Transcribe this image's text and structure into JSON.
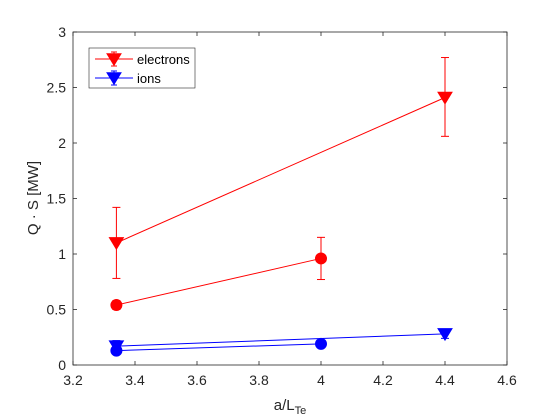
{
  "chart_data": {
    "type": "line",
    "xlabel_main": "a/L",
    "xlabel_sub": "Te",
    "ylabel": "Q · S [MW]",
    "xlim": [
      3.2,
      4.6
    ],
    "ylim": [
      0,
      3
    ],
    "xticks": [
      "3.2",
      "3.4",
      "3.6",
      "3.8",
      "4",
      "4.2",
      "4.4",
      "4.6"
    ],
    "yticks": [
      "0",
      "0.5",
      "1",
      "1.5",
      "2",
      "2.5",
      "3"
    ],
    "grid": false,
    "legend_position": "top-left",
    "series": [
      {
        "name": "electrons",
        "color": "#ff0000",
        "marker": "triangle-down",
        "x": [
          3.34,
          4.4
        ],
        "y": [
          1.1,
          2.41
        ],
        "err_low": [
          0.78,
          2.06
        ],
        "err_high": [
          1.42,
          2.77
        ]
      },
      {
        "name": "",
        "color": "#ff0000",
        "marker": "circle",
        "x": [
          3.34,
          4.0
        ],
        "y": [
          0.54,
          0.96
        ],
        "err_low": [
          0.5,
          0.77
        ],
        "err_high": [
          0.58,
          1.15
        ]
      },
      {
        "name": "ions",
        "color": "#0000ff",
        "marker": "triangle-down",
        "x": [
          3.34,
          4.4
        ],
        "y": [
          0.17,
          0.28
        ],
        "err_low": [
          0.14,
          0.24
        ],
        "err_high": [
          0.22,
          0.31
        ]
      },
      {
        "name": "",
        "color": "#0000ff",
        "marker": "circle",
        "x": [
          3.34,
          4.0
        ],
        "y": [
          0.13,
          0.19
        ],
        "err_low": [
          0.1,
          0.17
        ],
        "err_high": [
          0.16,
          0.21
        ]
      }
    ]
  }
}
